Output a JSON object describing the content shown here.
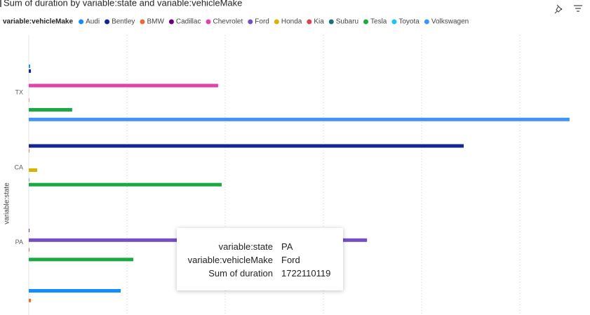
{
  "chart_data": {
    "type": "bar",
    "orientation": "horizontal",
    "title": "Sum of duration by variable:state and variable:vehicleMake",
    "legend_title": "variable:vehicleMake",
    "y_label": "variable:state",
    "categories": [
      "TX",
      "CA",
      "PA",
      null
    ],
    "series": [
      {
        "name": "Audi",
        "color": "#118DFF",
        "values": [
          7000000,
          null,
          null,
          468000000
        ]
      },
      {
        "name": "Bentley",
        "color": "#12239E",
        "values": [
          11000000,
          2214000000,
          null,
          null
        ]
      },
      {
        "name": "BMW",
        "color": "#E66C37",
        "values": [
          null,
          3000000,
          null,
          11000000
        ]
      },
      {
        "name": "Cadillac",
        "color": "#6B007B",
        "values": [
          null,
          null,
          3000000,
          null
        ]
      },
      {
        "name": "Chevrolet",
        "color": "#E044A7",
        "values": [
          964000000,
          null,
          null,
          null
        ]
      },
      {
        "name": "Ford",
        "color": "#744EC2",
        "values": [
          null,
          null,
          1722110119,
          null
        ]
      },
      {
        "name": "Honda",
        "color": "#D9B300",
        "values": [
          null,
          43000000,
          null,
          null
        ]
      },
      {
        "name": "Kia",
        "color": "#D64550",
        "values": [
          2000000,
          null,
          3000000,
          null
        ]
      },
      {
        "name": "Subaru",
        "color": "#197278",
        "values": [
          null,
          2000000,
          null,
          null
        ]
      },
      {
        "name": "Tesla",
        "color": "#1AAB40",
        "values": [
          221000000,
          982000000,
          532000000,
          null
        ]
      },
      {
        "name": "Toyota",
        "color": "#15C6F4",
        "values": [
          null,
          null,
          null,
          null
        ]
      },
      {
        "name": "Volkswagen",
        "color": "#4092FF",
        "values": [
          2753000000,
          null,
          null,
          null
        ]
      }
    ],
    "xlim": [
      0,
      2800000000
    ],
    "xticks": [
      0,
      500000000,
      1000000000,
      1500000000,
      2000000000,
      2500000000
    ],
    "grid": true
  },
  "tooltip": {
    "labels": [
      "variable:state",
      "variable:vehicleMake",
      "Sum of duration"
    ],
    "category_index": 2,
    "series_index": 5
  }
}
